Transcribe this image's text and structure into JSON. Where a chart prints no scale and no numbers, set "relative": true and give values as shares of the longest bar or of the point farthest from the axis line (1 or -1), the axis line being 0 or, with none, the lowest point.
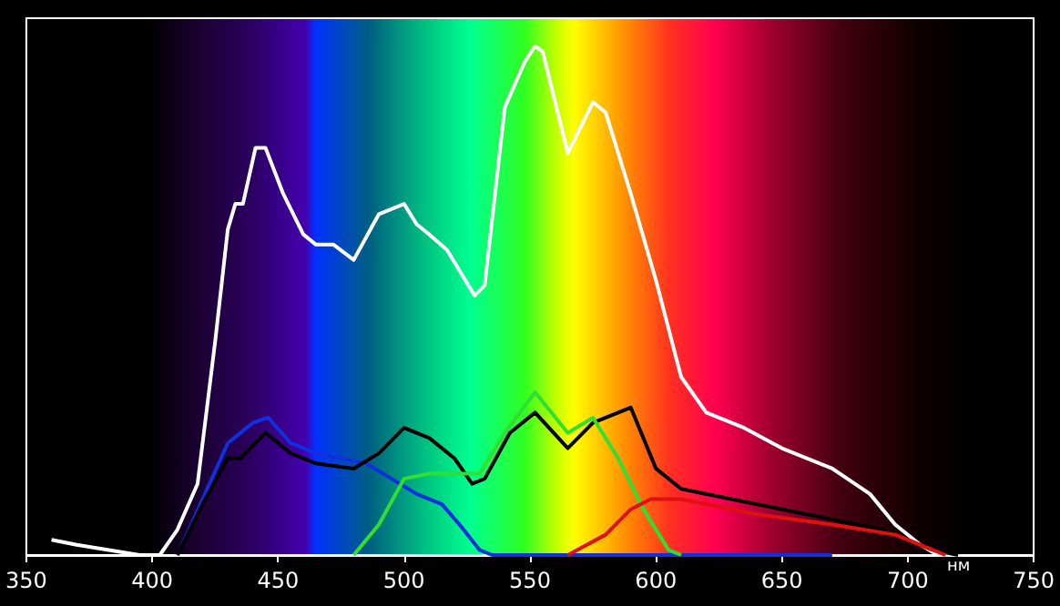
{
  "chart_data": {
    "type": "line",
    "relative": true,
    "xlabel": "нм",
    "xlim": [
      350,
      750
    ],
    "xticks": [
      350,
      400,
      450,
      500,
      550,
      600,
      650,
      700,
      750
    ],
    "grid": false,
    "marker": "none",
    "line_style": "solid",
    "series": [
      {
        "color": "#ffffff",
        "x": [
          360,
          370,
          395,
          403,
          410,
          418,
          425,
          430,
          433,
          436,
          441,
          445,
          452,
          460,
          465,
          472,
          480,
          490,
          500,
          505,
          510,
          517,
          528,
          532,
          540,
          548,
          552,
          555,
          565,
          575,
          580,
          590,
          600,
          610,
          620,
          635,
          650,
          670,
          685,
          695,
          705,
          712
        ],
        "values": [
          0.03,
          0.02,
          0,
          0,
          0.05,
          0.14,
          0.42,
          0.64,
          0.69,
          0.69,
          0.8,
          0.8,
          0.71,
          0.63,
          0.61,
          0.61,
          0.58,
          0.67,
          0.69,
          0.65,
          0.63,
          0.6,
          0.51,
          0.53,
          0.88,
          0.97,
          1,
          0.99,
          0.79,
          0.89,
          0.87,
          0.71,
          0.54,
          0.35,
          0.28,
          0.25,
          0.21,
          0.17,
          0.12,
          0.06,
          0.02,
          0
        ]
      },
      {
        "color": "#1030e0",
        "x": [
          410,
          420,
          430,
          440,
          446,
          455,
          465,
          475,
          485,
          495,
          505,
          515,
          522,
          530,
          535,
          670
        ],
        "values": [
          0,
          0.11,
          0.22,
          0.26,
          0.27,
          0.22,
          0.2,
          0.19,
          0.18,
          0.15,
          0.12,
          0.1,
          0.06,
          0.01,
          0,
          0
        ]
      },
      {
        "color": "#000000",
        "x": [
          410,
          420,
          430,
          435,
          445,
          455,
          465,
          480,
          490,
          500,
          510,
          520,
          527,
          532,
          542,
          552,
          565,
          575,
          590,
          600,
          610,
          630,
          660,
          690,
          710,
          720
        ],
        "values": [
          0,
          0.1,
          0.19,
          0.19,
          0.24,
          0.2,
          0.18,
          0.17,
          0.2,
          0.25,
          0.23,
          0.19,
          0.14,
          0.15,
          0.24,
          0.28,
          0.21,
          0.26,
          0.29,
          0.17,
          0.13,
          0.11,
          0.08,
          0.05,
          0.01,
          0
        ]
      },
      {
        "color": "#30e030",
        "x": [
          480,
          490,
          500,
          510,
          530,
          540,
          552,
          565,
          575,
          585,
          595,
          605,
          610
        ],
        "values": [
          0,
          0.06,
          0.15,
          0.16,
          0.16,
          0.24,
          0.32,
          0.24,
          0.27,
          0.19,
          0.09,
          0.01,
          0
        ]
      },
      {
        "color": "#e01010",
        "x": [
          565,
          580,
          590,
          598,
          610,
          640,
          670,
          695,
          710,
          715
        ],
        "values": [
          0,
          0.04,
          0.09,
          0.11,
          0.11,
          0.08,
          0.06,
          0.04,
          0.01,
          0
        ]
      }
    ]
  }
}
